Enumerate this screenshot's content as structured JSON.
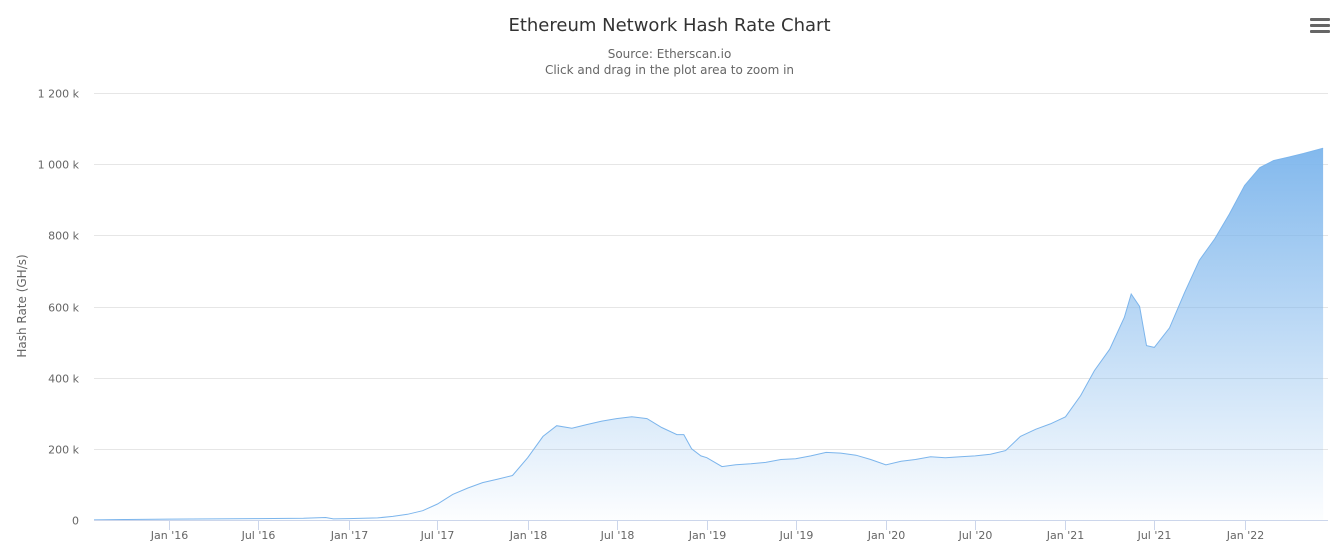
{
  "chart_data": {
    "type": "area",
    "title": "Ethereum Network Hash Rate Chart",
    "subtitle": "Source: Etherscan.io",
    "subtitle2": "Click and drag in the plot area to zoom in",
    "ylabel": "Hash Rate (GH/s)",
    "xlabel": "",
    "ylim": [
      0,
      1200000
    ],
    "yticks": [
      0,
      200000,
      400000,
      600000,
      800000,
      1000000,
      1200000
    ],
    "ytick_labels": [
      "0",
      "200 k",
      "400 k",
      "600 k",
      "800 k",
      "1 000 k",
      "1 200 k"
    ],
    "xlim": [
      "2015-08-01",
      "2022-06-20"
    ],
    "xticks": [
      "2016-01-01",
      "2016-07-01",
      "2017-01-01",
      "2017-07-01",
      "2018-01-01",
      "2018-07-01",
      "2019-01-01",
      "2019-07-01",
      "2020-01-01",
      "2020-07-01",
      "2021-01-01",
      "2021-07-01",
      "2022-01-01"
    ],
    "xtick_labels": [
      "Jan '16",
      "Jul '16",
      "Jan '17",
      "Jul '17",
      "Jan '18",
      "Jul '18",
      "Jan '19",
      "Jul '19",
      "Jan '20",
      "Jul '20",
      "Jan '21",
      "Jul '21",
      "Jan '22"
    ],
    "grid": true,
    "legend": "none",
    "series": [
      {
        "name": "Hash Rate",
        "x": [
          "2015-08-01",
          "2015-10-01",
          "2016-01-01",
          "2016-04-01",
          "2016-07-01",
          "2016-10-01",
          "2016-11-15",
          "2016-12-01",
          "2017-01-01",
          "2017-03-01",
          "2017-04-01",
          "2017-05-01",
          "2017-06-01",
          "2017-07-01",
          "2017-08-01",
          "2017-09-01",
          "2017-10-01",
          "2017-11-01",
          "2017-12-01",
          "2018-01-01",
          "2018-02-01",
          "2018-03-01",
          "2018-04-01",
          "2018-05-01",
          "2018-06-01",
          "2018-07-01",
          "2018-08-01",
          "2018-09-01",
          "2018-10-01",
          "2018-11-01",
          "2018-11-15",
          "2018-12-01",
          "2018-12-20",
          "2019-01-01",
          "2019-02-01",
          "2019-03-01",
          "2019-04-01",
          "2019-05-01",
          "2019-06-01",
          "2019-07-01",
          "2019-08-01",
          "2019-09-01",
          "2019-10-01",
          "2019-11-01",
          "2019-12-01",
          "2020-01-01",
          "2020-02-01",
          "2020-03-01",
          "2020-04-01",
          "2020-05-01",
          "2020-06-01",
          "2020-07-01",
          "2020-08-01",
          "2020-09-01",
          "2020-10-01",
          "2020-11-01",
          "2020-12-01",
          "2021-01-01",
          "2021-02-01",
          "2021-03-01",
          "2021-04-01",
          "2021-05-01",
          "2021-05-15",
          "2021-06-01",
          "2021-06-15",
          "2021-07-01",
          "2021-08-01",
          "2021-09-01",
          "2021-10-01",
          "2021-11-01",
          "2021-12-01",
          "2022-01-01",
          "2022-02-01",
          "2022-03-01",
          "2022-04-01",
          "2022-05-01",
          "2022-06-10"
        ],
        "values": [
          200,
          1500,
          2500,
          3000,
          4000,
          5000,
          7000,
          3000,
          4000,
          6000,
          10000,
          16000,
          26000,
          45000,
          72000,
          90000,
          105000,
          115000,
          125000,
          175000,
          235000,
          265000,
          258000,
          268000,
          278000,
          285000,
          290000,
          285000,
          260000,
          240000,
          240000,
          200000,
          180000,
          175000,
          150000,
          155000,
          158000,
          162000,
          170000,
          172000,
          180000,
          190000,
          188000,
          182000,
          170000,
          155000,
          165000,
          170000,
          178000,
          175000,
          178000,
          180000,
          185000,
          195000,
          235000,
          255000,
          270000,
          290000,
          350000,
          420000,
          480000,
          570000,
          635000,
          600000,
          490000,
          485000,
          540000,
          640000,
          730000,
          790000,
          860000,
          940000,
          990000,
          1010000,
          1020000,
          1030000,
          1045000
        ]
      }
    ]
  },
  "ui": {
    "menu_icon": "hamburger-menu-icon",
    "colors": {
      "line": "#7cb5ec",
      "fill_top": "#7cb5ec",
      "grid": "#e6e6e6",
      "text": "#666666",
      "title": "#333333"
    }
  }
}
